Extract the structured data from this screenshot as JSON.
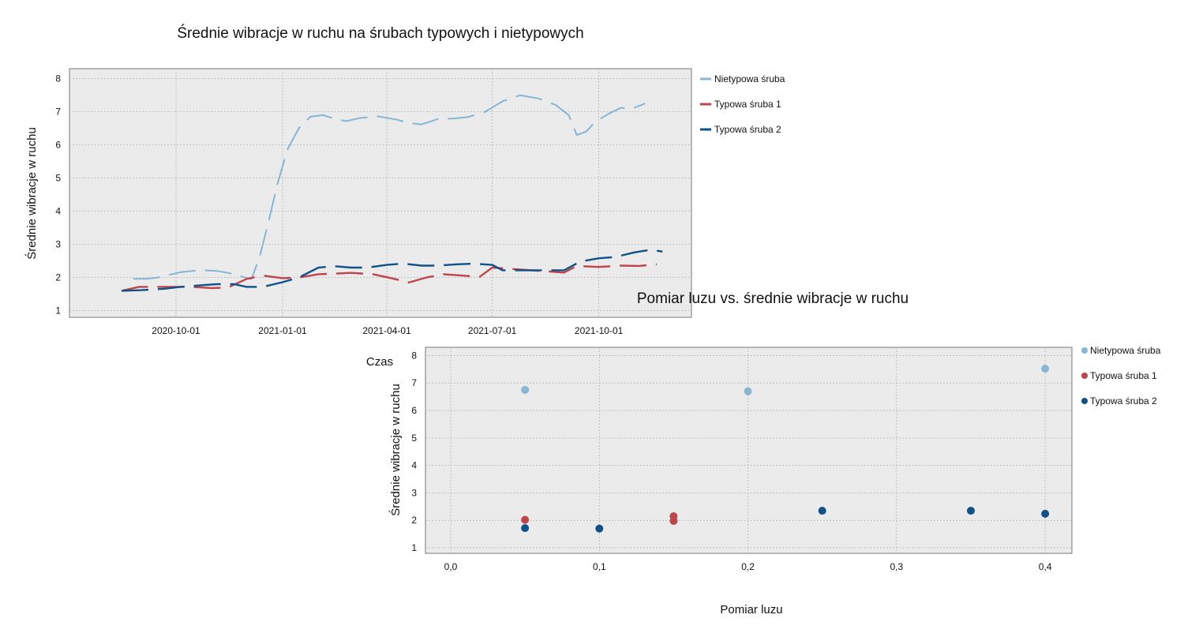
{
  "chart_data": [
    {
      "type": "line",
      "title": "Średnie wibracje w ruchu na śrubach typowych i nietypowych",
      "xlabel": "Czas",
      "ylabel": "Średnie wibracje w ruchu",
      "x_ticks": [
        "2020-10-01",
        "2021-01-01",
        "2021-04-01",
        "2021-07-01",
        "2021-10-01"
      ],
      "y_ticks": [
        "1",
        "2",
        "3",
        "4",
        "5",
        "6",
        "7",
        "8"
      ],
      "ylim": [
        0.8,
        8.3
      ],
      "xlim": [
        "2020-07-01",
        "2021-12-20"
      ],
      "grid": true,
      "legend_position": "right",
      "series": [
        {
          "name": "Nietypowa śruba",
          "color": "#86b6d4",
          "style": "dashed-segments",
          "points": [
            [
              "2020-08-25",
              1.96
            ],
            [
              "2020-09-05",
              1.96
            ],
            [
              "2020-09-15",
              2.0
            ],
            [
              "2020-09-25",
              2.08
            ],
            [
              "2020-10-05",
              2.16
            ],
            [
              "2020-10-15",
              2.2
            ],
            [
              "2020-10-25",
              2.22
            ],
            [
              "2020-11-05",
              2.2
            ],
            [
              "2020-11-15",
              2.14
            ],
            [
              "2020-11-25",
              2.05
            ],
            [
              "2020-12-05",
              1.95
            ],
            [
              "2020-12-12",
              2.6
            ],
            [
              "2020-12-20",
              3.7
            ],
            [
              "2020-12-27",
              4.75
            ],
            [
              "2021-01-05",
              5.85
            ],
            [
              "2021-01-15",
              6.5
            ],
            [
              "2021-01-25",
              6.85
            ],
            [
              "2021-02-05",
              6.9
            ],
            [
              "2021-02-15",
              6.78
            ],
            [
              "2021-02-25",
              6.72
            ],
            [
              "2021-03-10",
              6.82
            ],
            [
              "2021-03-25",
              6.86
            ],
            [
              "2021-04-10",
              6.76
            ],
            [
              "2021-04-20",
              6.66
            ],
            [
              "2021-05-01",
              6.62
            ],
            [
              "2021-05-15",
              6.78
            ],
            [
              "2021-05-30",
              6.8
            ],
            [
              "2021-06-10",
              6.84
            ],
            [
              "2021-06-25",
              7.0
            ],
            [
              "2021-07-10",
              7.32
            ],
            [
              "2021-07-25",
              7.5
            ],
            [
              "2021-08-10",
              7.4
            ],
            [
              "2021-08-25",
              7.2
            ],
            [
              "2021-09-05",
              6.9
            ],
            [
              "2021-09-12",
              6.3
            ],
            [
              "2021-09-20",
              6.4
            ],
            [
              "2021-09-28",
              6.7
            ],
            [
              "2021-10-10",
              6.95
            ],
            [
              "2021-10-20",
              7.12
            ],
            [
              "2021-10-30",
              7.1
            ],
            [
              "2021-11-10",
              7.25
            ]
          ]
        },
        {
          "name": "Typowa śruba 1",
          "color": "#c0444c",
          "style": "dashed-segments",
          "points": [
            [
              "2020-08-15",
              1.6
            ],
            [
              "2020-08-30",
              1.72
            ],
            [
              "2020-09-15",
              1.72
            ],
            [
              "2020-10-01",
              1.72
            ],
            [
              "2020-10-15",
              1.72
            ],
            [
              "2020-11-01",
              1.68
            ],
            [
              "2020-11-15",
              1.7
            ],
            [
              "2020-12-01",
              1.96
            ],
            [
              "2020-12-15",
              2.06
            ],
            [
              "2021-01-01",
              1.98
            ],
            [
              "2021-01-15",
              2.0
            ],
            [
              "2021-02-01",
              2.1
            ],
            [
              "2021-02-15",
              2.12
            ],
            [
              "2021-03-01",
              2.14
            ],
            [
              "2021-03-20",
              2.1
            ],
            [
              "2021-04-05",
              1.98
            ],
            [
              "2021-04-20",
              1.85
            ],
            [
              "2021-05-05",
              2.0
            ],
            [
              "2021-05-20",
              2.1
            ],
            [
              "2021-06-05",
              2.06
            ],
            [
              "2021-06-20",
              2.02
            ],
            [
              "2021-07-01",
              2.3
            ],
            [
              "2021-09-01",
              2.15
            ],
            [
              "2021-09-12",
              2.35
            ],
            [
              "2021-10-01",
              2.32
            ],
            [
              "2021-10-20",
              2.36
            ],
            [
              "2021-11-05",
              2.35
            ],
            [
              "2021-11-20",
              2.4
            ]
          ]
        },
        {
          "name": "Typowa śruba 2",
          "color": "#0f5289",
          "style": "dashed-segments",
          "points": [
            [
              "2020-08-15",
              1.6
            ],
            [
              "2020-09-01",
              1.62
            ],
            [
              "2020-09-20",
              1.66
            ],
            [
              "2020-10-05",
              1.72
            ],
            [
              "2020-10-20",
              1.76
            ],
            [
              "2020-11-05",
              1.8
            ],
            [
              "2020-11-20",
              1.8
            ],
            [
              "2020-12-01",
              1.72
            ],
            [
              "2020-12-15",
              1.72
            ],
            [
              "2021-01-01",
              1.86
            ],
            [
              "2021-01-15",
              2.0
            ],
            [
              "2021-02-01",
              2.3
            ],
            [
              "2021-02-15",
              2.34
            ],
            [
              "2021-03-01",
              2.3
            ],
            [
              "2021-03-15",
              2.3
            ],
            [
              "2021-04-01",
              2.38
            ],
            [
              "2021-04-15",
              2.42
            ],
            [
              "2021-05-01",
              2.36
            ],
            [
              "2021-05-15",
              2.36
            ],
            [
              "2021-06-01",
              2.4
            ],
            [
              "2021-06-15",
              2.42
            ],
            [
              "2021-07-01",
              2.38
            ],
            [
              "2021-07-10",
              2.22
            ],
            [
              "2021-09-01",
              2.22
            ],
            [
              "2021-09-15",
              2.48
            ],
            [
              "2021-10-01",
              2.58
            ],
            [
              "2021-10-15",
              2.62
            ],
            [
              "2021-11-01",
              2.76
            ],
            [
              "2021-11-15",
              2.84
            ],
            [
              "2021-11-25",
              2.78
            ]
          ]
        }
      ]
    },
    {
      "type": "scatter",
      "title": "Pomiar luzu vs. średnie wibracje w ruchu",
      "xlabel": "Pomiar luzu",
      "ylabel": "Średnie wibracje w ruchu",
      "x_ticks": [
        "0,0",
        "0,1",
        "0,2",
        "0,3",
        "0,4"
      ],
      "y_ticks": [
        "1",
        "2",
        "3",
        "4",
        "5",
        "6",
        "7",
        "8"
      ],
      "xlim": [
        -0.017,
        0.418
      ],
      "ylim": [
        0.8,
        8.3
      ],
      "grid": true,
      "legend_position": "right",
      "series": [
        {
          "name": "Nietypowa śruba",
          "color": "#86b6d4",
          "points": [
            [
              0.05,
              6.75
            ],
            [
              0.2,
              6.7
            ],
            [
              0.4,
              7.52
            ]
          ]
        },
        {
          "name": "Typowa śruba 1",
          "color": "#c0444c",
          "points": [
            [
              0.05,
              2.02
            ],
            [
              0.15,
              2.15
            ],
            [
              0.15,
              1.98
            ]
          ]
        },
        {
          "name": "Typowa śruba 2",
          "color": "#0f5289",
          "points": [
            [
              0.05,
              1.72
            ],
            [
              0.1,
              1.7
            ],
            [
              0.25,
              2.35
            ],
            [
              0.35,
              2.35
            ],
            [
              0.4,
              2.24
            ]
          ]
        }
      ]
    }
  ]
}
